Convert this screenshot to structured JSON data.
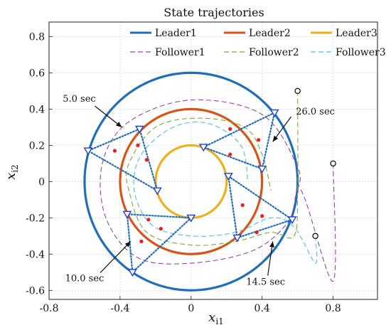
{
  "chart_data": {
    "type": "line",
    "title": "State trajectories",
    "xlabel": "x_i1",
    "ylabel": "x_i2",
    "xlim": [
      -0.8,
      1.05
    ],
    "ylim": [
      -0.65,
      0.88
    ],
    "xticks": [
      -0.8,
      -0.4,
      0,
      0.4,
      0.8
    ],
    "xtick_labels": [
      "-0.8",
      "-0.4",
      "0",
      "0.4",
      "0.8"
    ],
    "yticks": [
      -0.6,
      -0.4,
      -0.2,
      0,
      0.2,
      0.4,
      0.6,
      0.8
    ],
    "ytick_labels": [
      "-0.6",
      "-0.4",
      "-0.2",
      "0",
      "0.2",
      "0.4",
      "0.6",
      "0.8"
    ],
    "grid": true,
    "legend_position": "top",
    "colors": {
      "leader1": "#1f6fb8",
      "leader2": "#d95319",
      "leader3": "#edb120",
      "follower1": "#9b3fa8",
      "follower2": "#77ac30",
      "follower3": "#4dbeee",
      "formation": "#1f6fb8",
      "dots": "#e8201c"
    },
    "series": [
      {
        "name": "Leader1",
        "kind": "leader",
        "shape": "ellipse",
        "center": [
          0,
          0
        ],
        "rx": 0.6,
        "ry": 0.6
      },
      {
        "name": "Leader2",
        "kind": "leader",
        "shape": "ellipse",
        "center": [
          0,
          0
        ],
        "rx": 0.4,
        "ry": 0.4
      },
      {
        "name": "Leader3",
        "kind": "leader",
        "shape": "ellipse",
        "center": [
          0,
          0
        ],
        "rx": 0.2,
        "ry": 0.2
      },
      {
        "name": "Follower1",
        "kind": "follower",
        "start": [
          0.8,
          0.1
        ],
        "path": [
          [
            0.8,
            0.1
          ],
          [
            0.8,
            -0.55
          ],
          [
            0.62,
            -0.05
          ],
          [
            0.55,
            -0.22
          ],
          [
            0.35,
            -0.38
          ],
          [
            0,
            -0.45
          ],
          [
            -0.3,
            -0.42
          ],
          [
            -0.48,
            -0.2
          ],
          [
            -0.5,
            0.1
          ],
          [
            -0.35,
            0.33
          ],
          [
            0,
            0.45
          ],
          [
            0.4,
            0.37
          ],
          [
            0.6,
            0.08
          ],
          [
            0.6,
            -0.05
          ]
        ]
      },
      {
        "name": "Follower2",
        "kind": "follower",
        "start": [
          0.6,
          0.5
        ],
        "path": [
          [
            0.6,
            0.5
          ],
          [
            0.6,
            -0.05
          ],
          [
            0.58,
            -0.3
          ],
          [
            0.45,
            -0.28
          ],
          [
            0.25,
            -0.33
          ],
          [
            0,
            -0.35
          ],
          [
            -0.25,
            -0.28
          ],
          [
            -0.35,
            -0.05
          ],
          [
            -0.35,
            0.1
          ],
          [
            -0.2,
            0.3
          ],
          [
            0.05,
            0.35
          ],
          [
            0.3,
            0.3
          ],
          [
            0.4,
            0.15
          ],
          [
            0.45,
            -0.05
          ]
        ]
      },
      {
        "name": "Follower3",
        "kind": "follower",
        "start": [
          0.7,
          -0.3
        ],
        "path": [
          [
            0.7,
            -0.3
          ],
          [
            0.7,
            -0.45
          ],
          [
            0.58,
            -0.25
          ],
          [
            0.45,
            -0.2
          ],
          [
            0.25,
            -0.28
          ],
          [
            0,
            -0.3
          ],
          [
            -0.22,
            -0.24
          ],
          [
            -0.32,
            -0.05
          ],
          [
            -0.28,
            0.15
          ],
          [
            -0.1,
            0.3
          ],
          [
            0.1,
            0.32
          ],
          [
            0.28,
            0.2
          ],
          [
            0.32,
            0.0
          ]
        ]
      }
    ],
    "annotations": [
      {
        "label": "5.0 sec",
        "text_at": [
          -0.63,
          0.44
        ],
        "arrow_to": [
          -0.39,
          0.3
        ],
        "triangle": [
          [
            -0.29,
            0.29
          ],
          [
            -0.58,
            0.17
          ],
          [
            -0.19,
            -0.05
          ]
        ],
        "dots": [
          [
            -0.43,
            0.17
          ],
          [
            -0.3,
            0.2
          ],
          [
            -0.25,
            0.12
          ]
        ]
      },
      {
        "label": "26.0 sec",
        "text_at": [
          0.7,
          0.37
        ],
        "arrow_to": [
          0.46,
          0.22
        ],
        "triangle": [
          [
            0.47,
            0.38
          ],
          [
            0.07,
            0.19
          ],
          [
            0.4,
            0.07
          ]
        ],
        "dots": [
          [
            0.22,
            0.29
          ],
          [
            0.38,
            0.23
          ],
          [
            0.22,
            0.15
          ]
        ]
      },
      {
        "label": "10.0 sec",
        "text_at": [
          -0.6,
          -0.55
        ],
        "arrow_to": [
          -0.34,
          -0.33
        ],
        "triangle": [
          [
            -0.36,
            -0.18
          ],
          [
            -0.33,
            -0.5
          ],
          [
            0,
            -0.2
          ]
        ],
        "dots": [
          [
            -0.24,
            -0.21
          ],
          [
            -0.28,
            -0.33
          ],
          [
            -0.17,
            -0.26
          ]
        ]
      },
      {
        "label": "14.5 sec",
        "text_at": [
          0.42,
          -0.57
        ],
        "arrow_to": [
          0.46,
          -0.33
        ],
        "triangle": [
          [
            0.21,
            0.03
          ],
          [
            0.57,
            -0.21
          ],
          [
            0.26,
            -0.31
          ]
        ],
        "dots": [
          [
            0.29,
            -0.13
          ],
          [
            0.4,
            -0.19
          ],
          [
            0.37,
            -0.28
          ]
        ]
      }
    ]
  }
}
